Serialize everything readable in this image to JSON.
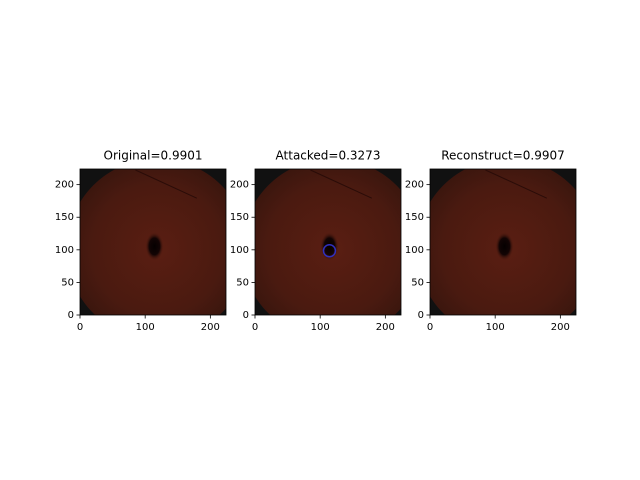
{
  "chart_data": [
    {
      "type": "image",
      "title": "Original=0.9901",
      "xlim": [
        0,
        224
      ],
      "ylim": [
        0,
        224
      ],
      "xticks": [
        0,
        100,
        200
      ],
      "yticks": [
        0,
        50,
        100,
        150,
        200
      ]
    },
    {
      "type": "image",
      "title": "Attacked=0.3273",
      "xlim": [
        0,
        224
      ],
      "ylim": [
        0,
        224
      ],
      "xticks": [
        0,
        100,
        200
      ],
      "yticks": [
        0,
        50,
        100,
        150,
        200
      ]
    },
    {
      "type": "image",
      "title": "Reconstruct=0.9907",
      "xlim": [
        0,
        224
      ],
      "ylim": [
        0,
        224
      ],
      "xticks": [
        0,
        100,
        200
      ],
      "yticks": [
        0,
        50,
        100,
        150,
        200
      ]
    }
  ]
}
